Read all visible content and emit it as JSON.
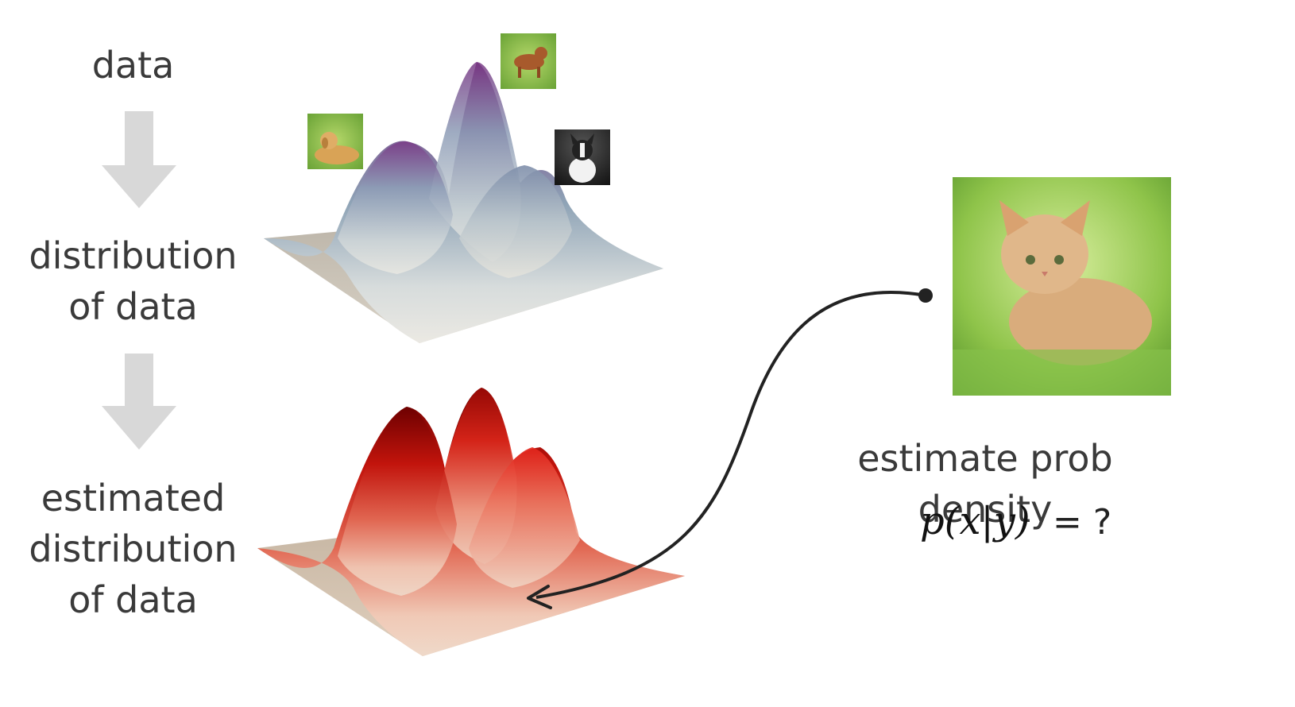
{
  "steps": {
    "data": "data",
    "distribution": [
      "distribution",
      "of data"
    ],
    "estimated": [
      "estimated",
      "distribution",
      "of data"
    ]
  },
  "query": {
    "caption": "estimate prob density",
    "formula": "p(x|y)",
    "equals": "= ?"
  },
  "images": {
    "dog_golden": "golden retriever lying on grass",
    "dog_puppy": "brown puppy walking on grass",
    "dog_bulldog": "black and white french bulldog",
    "cat": "orange kitten sitting in grass"
  },
  "colors": {
    "arrow_gray": "#d8d8d8",
    "true_dist_peak": "#7a2a7e",
    "true_dist_mid": "#7f9bb3",
    "est_dist_peak": "#8b0000",
    "est_dist_mid": "#e8341f",
    "floor": "#cfc4b4",
    "connector": "#222222"
  }
}
